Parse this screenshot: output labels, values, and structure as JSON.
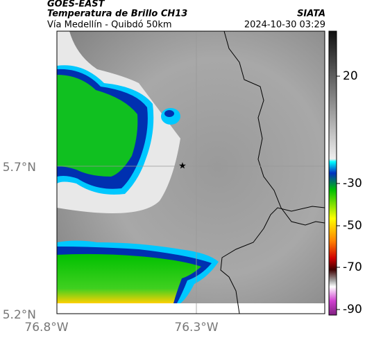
{
  "header": {
    "source": "GOES-EAST",
    "title": "Temperatura de Brillo CH13",
    "subtitle": "Vía Medellín - Quibdó 50km",
    "credit": "SIATA",
    "datetime": "2024-10-30 03:29"
  },
  "axes": {
    "lat_ticks": [
      "5.7°N",
      "5.2°N"
    ],
    "lon_ticks": [
      "76.8°W",
      "76.3°W"
    ]
  },
  "colorbar": {
    "ticks": [
      20,
      -30,
      -50,
      -70,
      -90
    ]
  }
}
